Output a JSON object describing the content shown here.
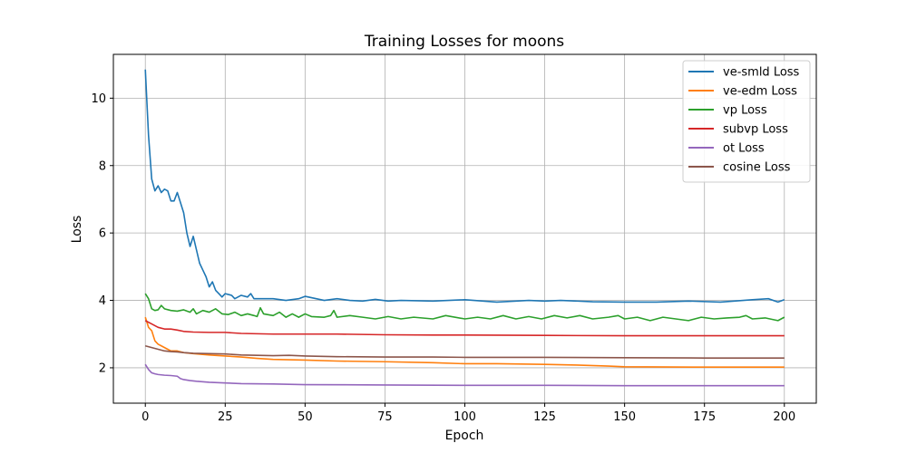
{
  "chart_data": {
    "type": "line",
    "title": "Training Losses for moons",
    "xlabel": "Epoch",
    "ylabel": "Loss",
    "xlim": [
      -10,
      210
    ],
    "ylim": [
      0.95,
      11.3
    ],
    "xticks": [
      0,
      25,
      50,
      75,
      100,
      125,
      150,
      175,
      200
    ],
    "yticks": [
      2,
      4,
      6,
      8,
      10
    ],
    "grid": true,
    "legend_position": "top-right",
    "series": [
      {
        "name": "ve-smld Loss",
        "color": "#1f77b4",
        "points": [
          [
            0,
            10.85
          ],
          [
            1,
            8.9
          ],
          [
            2,
            7.6
          ],
          [
            3,
            7.25
          ],
          [
            4,
            7.4
          ],
          [
            5,
            7.2
          ],
          [
            6,
            7.3
          ],
          [
            7,
            7.25
          ],
          [
            8,
            6.95
          ],
          [
            9,
            6.95
          ],
          [
            10,
            7.2
          ],
          [
            11,
            6.9
          ],
          [
            12,
            6.6
          ],
          [
            13,
            6.0
          ],
          [
            14,
            5.6
          ],
          [
            15,
            5.9
          ],
          [
            16,
            5.5
          ],
          [
            17,
            5.1
          ],
          [
            18,
            4.9
          ],
          [
            19,
            4.7
          ],
          [
            20,
            4.4
          ],
          [
            21,
            4.55
          ],
          [
            22,
            4.3
          ],
          [
            23,
            4.2
          ],
          [
            24,
            4.1
          ],
          [
            25,
            4.2
          ],
          [
            27,
            4.15
          ],
          [
            28,
            4.05
          ],
          [
            30,
            4.15
          ],
          [
            32,
            4.1
          ],
          [
            33,
            4.2
          ],
          [
            34,
            4.05
          ],
          [
            36,
            4.05
          ],
          [
            40,
            4.05
          ],
          [
            44,
            4.0
          ],
          [
            48,
            4.05
          ],
          [
            50,
            4.12
          ],
          [
            52,
            4.08
          ],
          [
            56,
            4.0
          ],
          [
            60,
            4.05
          ],
          [
            64,
            4.0
          ],
          [
            68,
            3.98
          ],
          [
            72,
            4.03
          ],
          [
            76,
            3.98
          ],
          [
            80,
            4.0
          ],
          [
            90,
            3.98
          ],
          [
            100,
            4.02
          ],
          [
            110,
            3.95
          ],
          [
            120,
            4.0
          ],
          [
            125,
            3.98
          ],
          [
            130,
            4.0
          ],
          [
            140,
            3.96
          ],
          [
            150,
            3.95
          ],
          [
            160,
            3.95
          ],
          [
            170,
            3.98
          ],
          [
            180,
            3.95
          ],
          [
            190,
            4.02
          ],
          [
            195,
            4.05
          ],
          [
            198,
            3.95
          ],
          [
            200,
            4.02
          ]
        ]
      },
      {
        "name": "ve-edm Loss",
        "color": "#ff7f0e",
        "points": [
          [
            0,
            3.5
          ],
          [
            1,
            3.2
          ],
          [
            2,
            3.1
          ],
          [
            3,
            2.8
          ],
          [
            4,
            2.7
          ],
          [
            5,
            2.65
          ],
          [
            6,
            2.6
          ],
          [
            7,
            2.55
          ],
          [
            8,
            2.5
          ],
          [
            10,
            2.5
          ],
          [
            12,
            2.45
          ],
          [
            15,
            2.42
          ],
          [
            20,
            2.38
          ],
          [
            25,
            2.35
          ],
          [
            30,
            2.32
          ],
          [
            35,
            2.28
          ],
          [
            40,
            2.25
          ],
          [
            50,
            2.23
          ],
          [
            60,
            2.2
          ],
          [
            75,
            2.18
          ],
          [
            90,
            2.15
          ],
          [
            100,
            2.12
          ],
          [
            110,
            2.12
          ],
          [
            125,
            2.1
          ],
          [
            135,
            2.08
          ],
          [
            145,
            2.05
          ],
          [
            150,
            2.03
          ],
          [
            175,
            2.02
          ],
          [
            200,
            2.02
          ]
        ]
      },
      {
        "name": "vp Loss",
        "color": "#2ca02c",
        "points": [
          [
            0,
            4.2
          ],
          [
            1,
            4.05
          ],
          [
            2,
            3.75
          ],
          [
            3,
            3.7
          ],
          [
            4,
            3.72
          ],
          [
            5,
            3.85
          ],
          [
            6,
            3.75
          ],
          [
            8,
            3.7
          ],
          [
            10,
            3.68
          ],
          [
            12,
            3.72
          ],
          [
            14,
            3.65
          ],
          [
            15,
            3.75
          ],
          [
            16,
            3.6
          ],
          [
            18,
            3.7
          ],
          [
            20,
            3.65
          ],
          [
            22,
            3.75
          ],
          [
            24,
            3.6
          ],
          [
            26,
            3.58
          ],
          [
            28,
            3.65
          ],
          [
            30,
            3.55
          ],
          [
            32,
            3.6
          ],
          [
            34,
            3.55
          ],
          [
            35,
            3.52
          ],
          [
            36,
            3.78
          ],
          [
            37,
            3.6
          ],
          [
            40,
            3.55
          ],
          [
            42,
            3.65
          ],
          [
            44,
            3.5
          ],
          [
            46,
            3.6
          ],
          [
            48,
            3.5
          ],
          [
            50,
            3.6
          ],
          [
            52,
            3.52
          ],
          [
            56,
            3.5
          ],
          [
            58,
            3.55
          ],
          [
            59,
            3.7
          ],
          [
            60,
            3.5
          ],
          [
            64,
            3.55
          ],
          [
            68,
            3.5
          ],
          [
            72,
            3.45
          ],
          [
            76,
            3.52
          ],
          [
            80,
            3.45
          ],
          [
            84,
            3.5
          ],
          [
            90,
            3.45
          ],
          [
            94,
            3.55
          ],
          [
            100,
            3.45
          ],
          [
            104,
            3.5
          ],
          [
            108,
            3.45
          ],
          [
            112,
            3.55
          ],
          [
            116,
            3.45
          ],
          [
            120,
            3.52
          ],
          [
            124,
            3.45
          ],
          [
            128,
            3.55
          ],
          [
            132,
            3.48
          ],
          [
            136,
            3.55
          ],
          [
            140,
            3.45
          ],
          [
            145,
            3.5
          ],
          [
            148,
            3.55
          ],
          [
            150,
            3.45
          ],
          [
            154,
            3.5
          ],
          [
            158,
            3.4
          ],
          [
            162,
            3.5
          ],
          [
            166,
            3.45
          ],
          [
            170,
            3.4
          ],
          [
            174,
            3.5
          ],
          [
            178,
            3.45
          ],
          [
            182,
            3.48
          ],
          [
            186,
            3.5
          ],
          [
            188,
            3.55
          ],
          [
            190,
            3.45
          ],
          [
            194,
            3.48
          ],
          [
            198,
            3.4
          ],
          [
            200,
            3.5
          ]
        ]
      },
      {
        "name": "subvp Loss",
        "color": "#d62728",
        "points": [
          [
            0,
            3.4
          ],
          [
            2,
            3.3
          ],
          [
            4,
            3.2
          ],
          [
            6,
            3.15
          ],
          [
            8,
            3.15
          ],
          [
            10,
            3.12
          ],
          [
            12,
            3.08
          ],
          [
            15,
            3.06
          ],
          [
            20,
            3.05
          ],
          [
            25,
            3.05
          ],
          [
            30,
            3.02
          ],
          [
            40,
            3.0
          ],
          [
            50,
            3.0
          ],
          [
            60,
            3.0
          ],
          [
            75,
            2.98
          ],
          [
            90,
            2.97
          ],
          [
            100,
            2.97
          ],
          [
            125,
            2.96
          ],
          [
            150,
            2.95
          ],
          [
            175,
            2.95
          ],
          [
            200,
            2.95
          ]
        ]
      },
      {
        "name": "ot Loss",
        "color": "#9467bd",
        "points": [
          [
            0,
            2.1
          ],
          [
            1,
            1.95
          ],
          [
            2,
            1.85
          ],
          [
            3,
            1.82
          ],
          [
            4,
            1.8
          ],
          [
            6,
            1.78
          ],
          [
            8,
            1.77
          ],
          [
            10,
            1.75
          ],
          [
            11,
            1.68
          ],
          [
            12,
            1.65
          ],
          [
            14,
            1.62
          ],
          [
            16,
            1.6
          ],
          [
            20,
            1.57
          ],
          [
            25,
            1.55
          ],
          [
            30,
            1.53
          ],
          [
            40,
            1.52
          ],
          [
            50,
            1.5
          ],
          [
            75,
            1.49
          ],
          [
            100,
            1.48
          ],
          [
            125,
            1.48
          ],
          [
            150,
            1.47
          ],
          [
            175,
            1.47
          ],
          [
            200,
            1.47
          ]
        ]
      },
      {
        "name": "cosine Loss",
        "color": "#8c564b",
        "points": [
          [
            0,
            2.65
          ],
          [
            2,
            2.6
          ],
          [
            4,
            2.55
          ],
          [
            6,
            2.5
          ],
          [
            8,
            2.48
          ],
          [
            10,
            2.47
          ],
          [
            12,
            2.45
          ],
          [
            15,
            2.43
          ],
          [
            20,
            2.42
          ],
          [
            25,
            2.41
          ],
          [
            30,
            2.38
          ],
          [
            35,
            2.37
          ],
          [
            40,
            2.36
          ],
          [
            45,
            2.37
          ],
          [
            50,
            2.35
          ],
          [
            60,
            2.33
          ],
          [
            75,
            2.32
          ],
          [
            90,
            2.32
          ],
          [
            100,
            2.31
          ],
          [
            125,
            2.31
          ],
          [
            150,
            2.3
          ],
          [
            175,
            2.29
          ],
          [
            200,
            2.29
          ]
        ]
      }
    ]
  }
}
